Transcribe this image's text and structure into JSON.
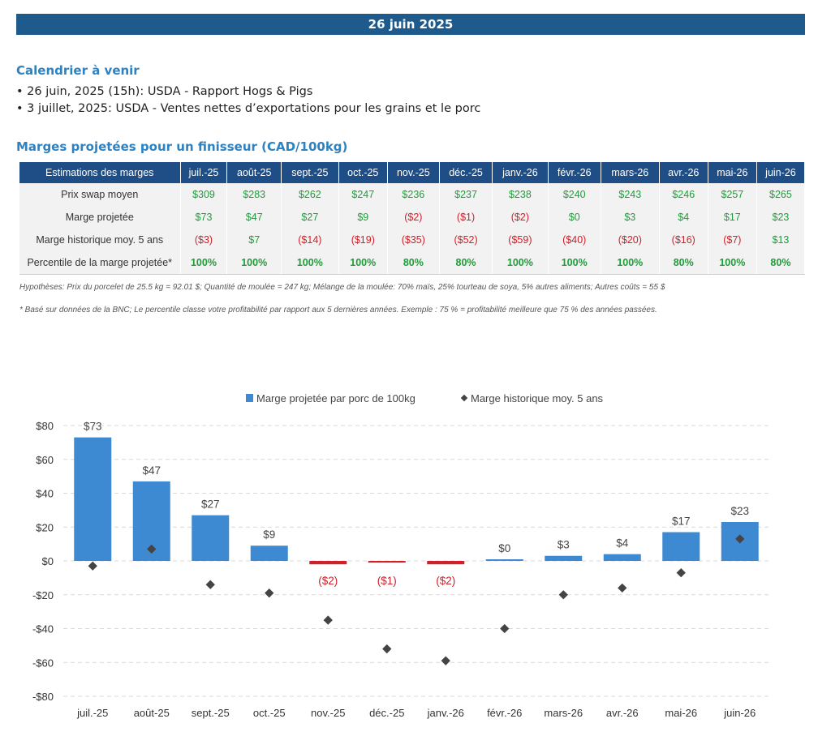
{
  "banner": {
    "date": "26 juin 2025"
  },
  "calendar": {
    "title": "Calendrier à venir",
    "items": [
      "• 26 juin, 2025 (15h): USDA - Rapport Hogs & Pigs",
      "• 3 juillet, 2025: USDA - Ventes nettes d’exportations pour les grains et le porc"
    ]
  },
  "margins": {
    "title": "Marges projetées pour un finisseur (CAD/100kg)",
    "header_label": "Estimations des marges",
    "months": [
      "juil.-25",
      "août-25",
      "sept.-25",
      "oct.-25",
      "nov.-25",
      "déc.-25",
      "janv.-26",
      "févr.-26",
      "mars-26",
      "avr.-26",
      "mai-26",
      "juin-26"
    ],
    "rows": [
      {
        "label": "Prix swap moyen",
        "values": [
          "$309",
          "$283",
          "$262",
          "$247",
          "$236",
          "$237",
          "$238",
          "$240",
          "$243",
          "$246",
          "$257",
          "$265"
        ]
      },
      {
        "label": "Marge projetée",
        "values": [
          "$73",
          "$47",
          "$27",
          "$9",
          "($2)",
          "($1)",
          "($2)",
          "$0",
          "$3",
          "$4",
          "$17",
          "$23"
        ]
      },
      {
        "label": "Marge historique moy. 5 ans",
        "values": [
          "($3)",
          "$7",
          "($14)",
          "($19)",
          "($35)",
          "($52)",
          "($59)",
          "($40)",
          "($20)",
          "($16)",
          "($7)",
          "$13"
        ]
      },
      {
        "label": "Percentile de la marge projetée*",
        "values": [
          "100%",
          "100%",
          "100%",
          "100%",
          "80%",
          "80%",
          "100%",
          "100%",
          "100%",
          "80%",
          "100%",
          "80%"
        ]
      }
    ],
    "note_assumptions": "Hypothèses: Prix du porcelet de 25.5 kg = 92.01 $; Quantité de moulée = 247 kg; Mélange de la moulée: 70% maïs, 25% tourteau de soya, 5% autres aliments; Autres coûts = 55 $",
    "note_percentile": "* Basé sur données de la BNC; Le percentile classe votre profitabilité par rapport aux 5 dernières années. Exemple : 75 % = profitabilité meilleure que 75 % des années passées."
  },
  "colors": {
    "banner": "#1f5a8c",
    "bar_pos": "#3d8ad2",
    "bar_neg": "#d0202a",
    "marker": "#444444",
    "positive": "#1f9c3a",
    "negative": "#d0202a"
  },
  "chart_data": {
    "type": "bar",
    "categories": [
      "juil.-25",
      "août-25",
      "sept.-25",
      "oct.-25",
      "nov.-25",
      "déc.-25",
      "janv.-26",
      "févr.-26",
      "mars-26",
      "avr.-26",
      "mai-26",
      "juin-26"
    ],
    "series": [
      {
        "name": "Marge projetée par porc de 100kg",
        "type": "bar",
        "values": [
          73,
          47,
          27,
          9,
          -2,
          -1,
          -2,
          0,
          3,
          4,
          17,
          23
        ]
      },
      {
        "name": "Marge historique moy. 5 ans",
        "type": "scatter",
        "values": [
          -3,
          7,
          -14,
          -19,
          -35,
          -52,
          -59,
          -40,
          -20,
          -16,
          -7,
          13
        ]
      }
    ],
    "data_labels": [
      "$73",
      "$47",
      "$27",
      "$9",
      "($2)",
      "($1)",
      "($2)",
      "$0",
      "$3",
      "$4",
      "$17",
      "$23"
    ],
    "y_ticks": [
      "$80",
      "$60",
      "$40",
      "$20",
      "$0",
      "-$20",
      "-$40",
      "-$60",
      "-$80"
    ],
    "ylim": [
      -80,
      80
    ],
    "grid": true,
    "legend_position": "top"
  }
}
